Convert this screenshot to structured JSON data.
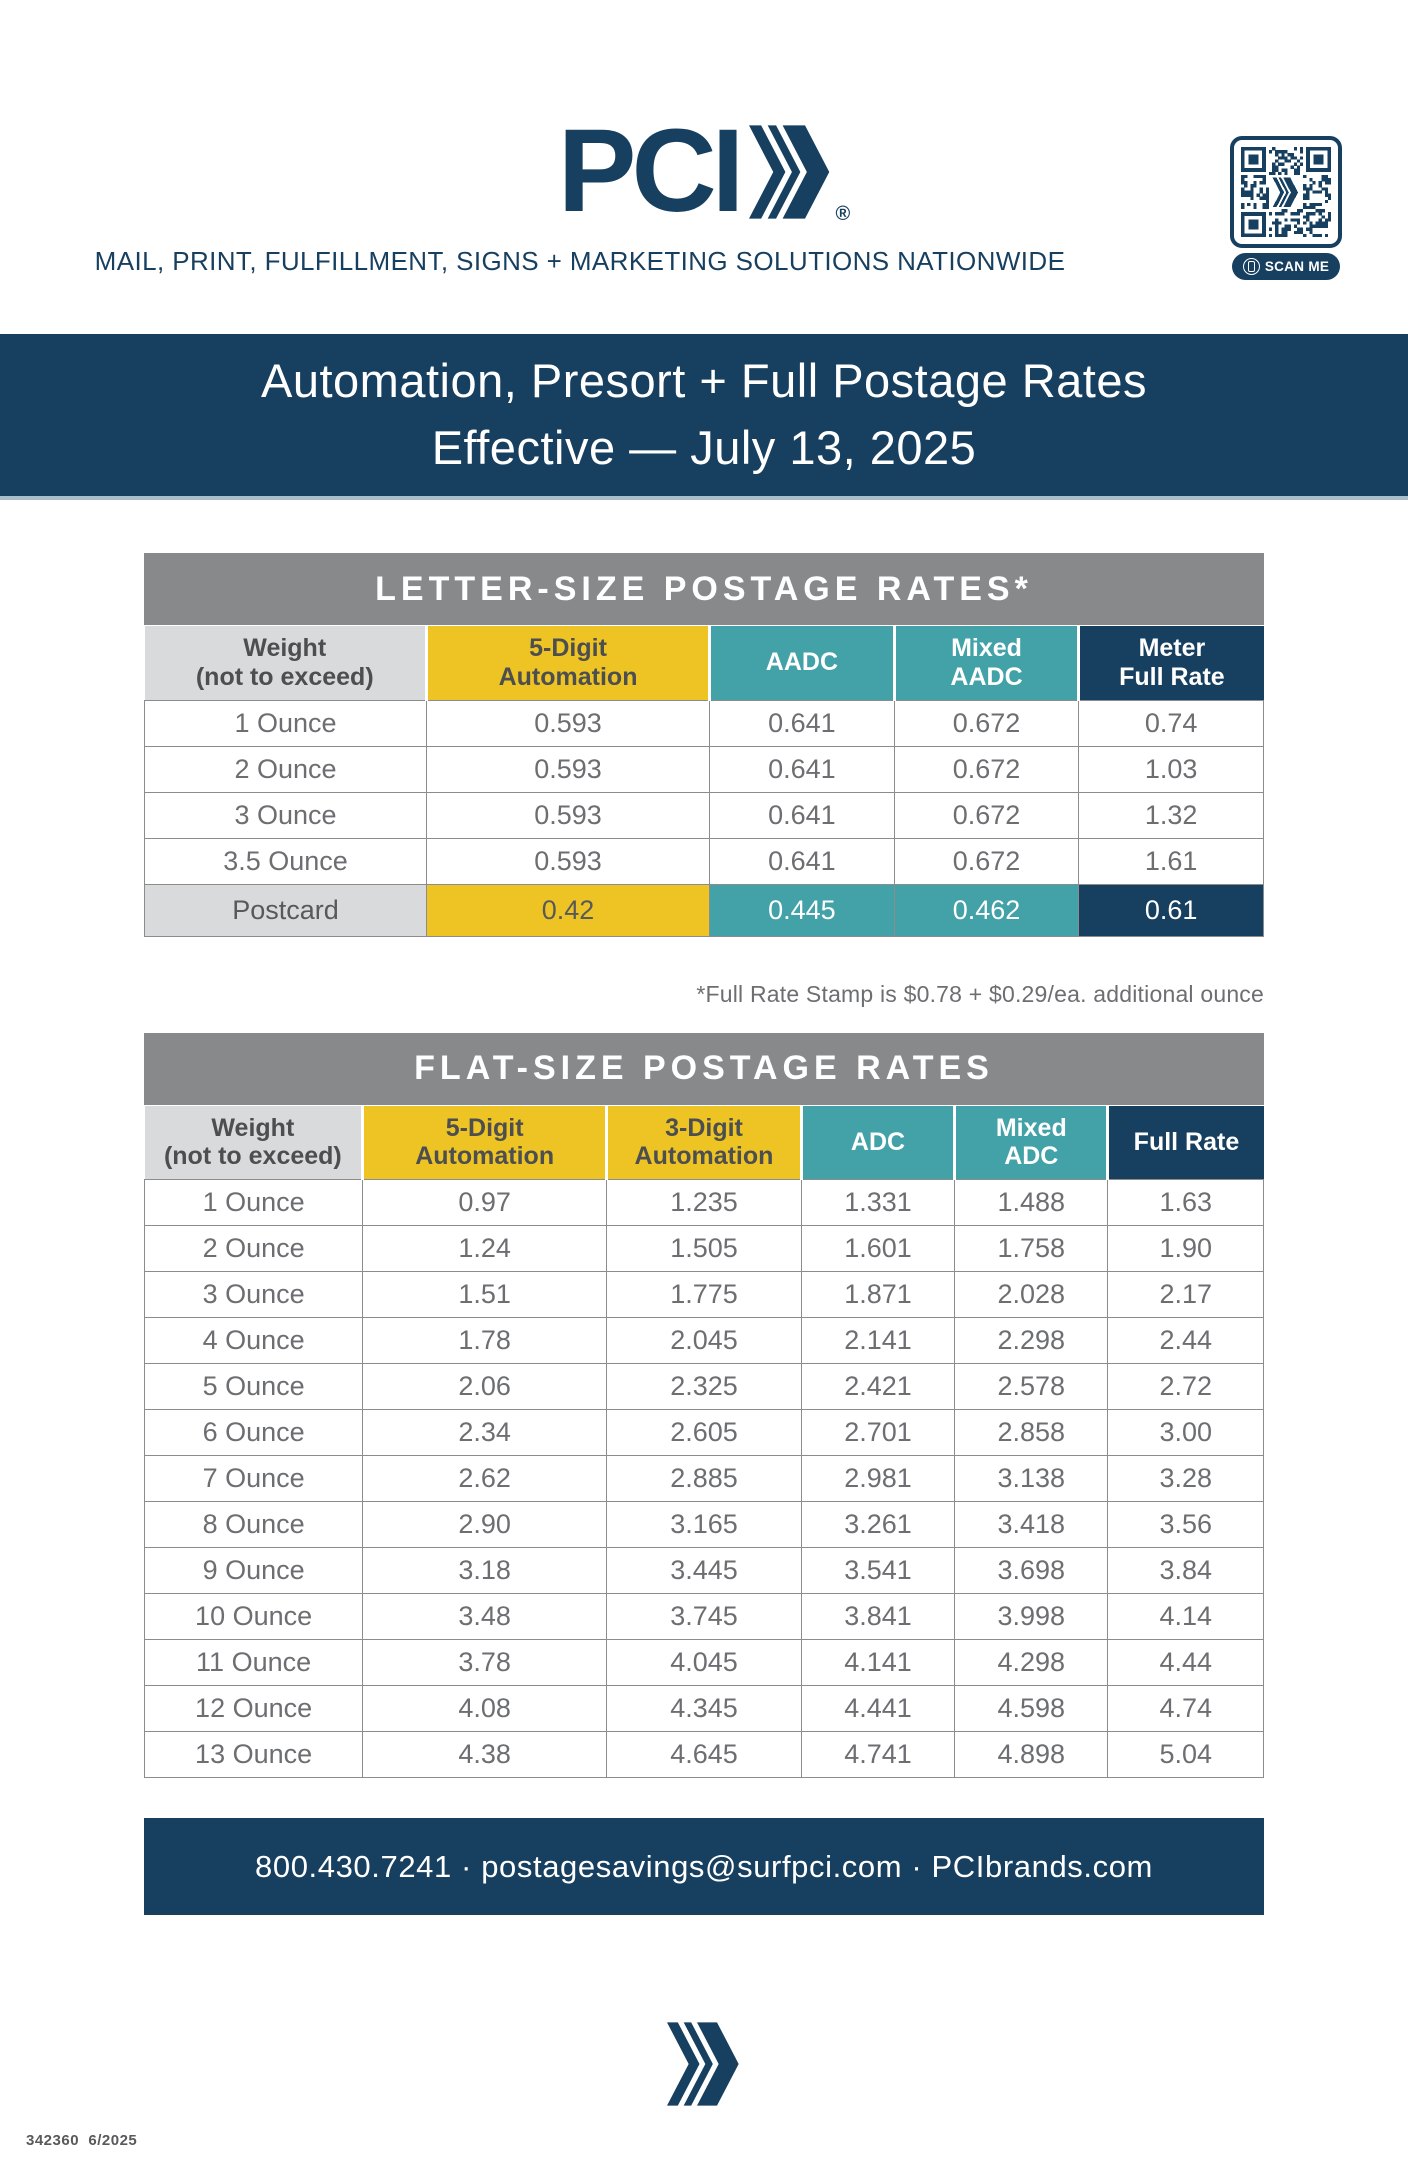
{
  "brand": {
    "logo_text": "PCI",
    "registered": "®",
    "tagline": "MAIL, PRINT, FULFILLMENT, SIGNS + MARKETING SOLUTIONS NATIONWIDE"
  },
  "qr": {
    "label": "SCAN ME"
  },
  "banner": {
    "line1": "Automation, Presort + Full Postage Rates",
    "line2": "Effective — July 13, 2025"
  },
  "letter_table": {
    "title": "LETTER-SIZE POSTAGE RATES*",
    "columns": [
      {
        "lines": [
          "Weight",
          "(not to exceed)"
        ],
        "style": "gray"
      },
      {
        "lines": [
          "5-Digit",
          "Automation"
        ],
        "style": "yellow"
      },
      {
        "lines": [
          "AADC"
        ],
        "style": "teal"
      },
      {
        "lines": [
          "Mixed",
          "AADC"
        ],
        "style": "teal"
      },
      {
        "lines": [
          "Meter",
          "Full Rate"
        ],
        "style": "navy"
      }
    ],
    "rows": [
      {
        "label": "1 Ounce",
        "values": [
          "0.593",
          "0.641",
          "0.672",
          "0.74"
        ],
        "highlight": false
      },
      {
        "label": "2 Ounce",
        "values": [
          "0.593",
          "0.641",
          "0.672",
          "1.03"
        ],
        "highlight": false
      },
      {
        "label": "3 Ounce",
        "values": [
          "0.593",
          "0.641",
          "0.672",
          "1.32"
        ],
        "highlight": false
      },
      {
        "label": "3.5 Ounce",
        "values": [
          "0.593",
          "0.641",
          "0.672",
          "1.61"
        ],
        "highlight": false
      },
      {
        "label": "Postcard",
        "values": [
          "0.42",
          "0.445",
          "0.462",
          "0.61"
        ],
        "highlight": true
      }
    ],
    "footnote": "*Full Rate Stamp is $0.78 + $0.29/ea. additional ounce"
  },
  "flat_table": {
    "title": "FLAT-SIZE POSTAGE RATES",
    "columns": [
      {
        "lines": [
          "Weight",
          "(not to exceed)"
        ],
        "style": "gray"
      },
      {
        "lines": [
          "5-Digit",
          "Automation"
        ],
        "style": "yellow"
      },
      {
        "lines": [
          "3-Digit",
          "Automation"
        ],
        "style": "yellow"
      },
      {
        "lines": [
          "ADC"
        ],
        "style": "teal"
      },
      {
        "lines": [
          "Mixed",
          "ADC"
        ],
        "style": "teal"
      },
      {
        "lines": [
          "Full Rate"
        ],
        "style": "navy"
      }
    ],
    "rows": [
      {
        "label": "1 Ounce",
        "values": [
          "0.97",
          "1.235",
          "1.331",
          "1.488",
          "1.63"
        ],
        "highlight": false
      },
      {
        "label": "2 Ounce",
        "values": [
          "1.24",
          "1.505",
          "1.601",
          "1.758",
          "1.90"
        ],
        "highlight": false
      },
      {
        "label": "3 Ounce",
        "values": [
          "1.51",
          "1.775",
          "1.871",
          "2.028",
          "2.17"
        ],
        "highlight": false
      },
      {
        "label": "4 Ounce",
        "values": [
          "1.78",
          "2.045",
          "2.141",
          "2.298",
          "2.44"
        ],
        "highlight": false
      },
      {
        "label": "5 Ounce",
        "values": [
          "2.06",
          "2.325",
          "2.421",
          "2.578",
          "2.72"
        ],
        "highlight": false
      },
      {
        "label": "6 Ounce",
        "values": [
          "2.34",
          "2.605",
          "2.701",
          "2.858",
          "3.00"
        ],
        "highlight": false
      },
      {
        "label": "7 Ounce",
        "values": [
          "2.62",
          "2.885",
          "2.981",
          "3.138",
          "3.28"
        ],
        "highlight": false
      },
      {
        "label": "8 Ounce",
        "values": [
          "2.90",
          "3.165",
          "3.261",
          "3.418",
          "3.56"
        ],
        "highlight": false
      },
      {
        "label": "9 Ounce",
        "values": [
          "3.18",
          "3.445",
          "3.541",
          "3.698",
          "3.84"
        ],
        "highlight": false
      },
      {
        "label": "10 Ounce",
        "values": [
          "3.48",
          "3.745",
          "3.841",
          "3.998",
          "4.14"
        ],
        "highlight": false
      },
      {
        "label": "11 Ounce",
        "values": [
          "3.78",
          "4.045",
          "4.141",
          "4.298",
          "4.44"
        ],
        "highlight": false
      },
      {
        "label": "12 Ounce",
        "values": [
          "4.08",
          "4.345",
          "4.441",
          "4.598",
          "4.74"
        ],
        "highlight": false
      },
      {
        "label": "13 Ounce",
        "values": [
          "4.38",
          "4.645",
          "4.741",
          "4.898",
          "5.04"
        ],
        "highlight": false
      }
    ]
  },
  "footer": {
    "contact": "800.430.7241 · postagesavings@surfpci.com · PCIbrands.com",
    "print_code": "342360  6/2025"
  },
  "colors": {
    "navy": "#173F5F",
    "yellow": "#EEC425",
    "teal": "#42A2A8",
    "band_gray": "#87898B",
    "light_gray": "#D9DADB",
    "accent_strip": "#A8BFCA"
  }
}
